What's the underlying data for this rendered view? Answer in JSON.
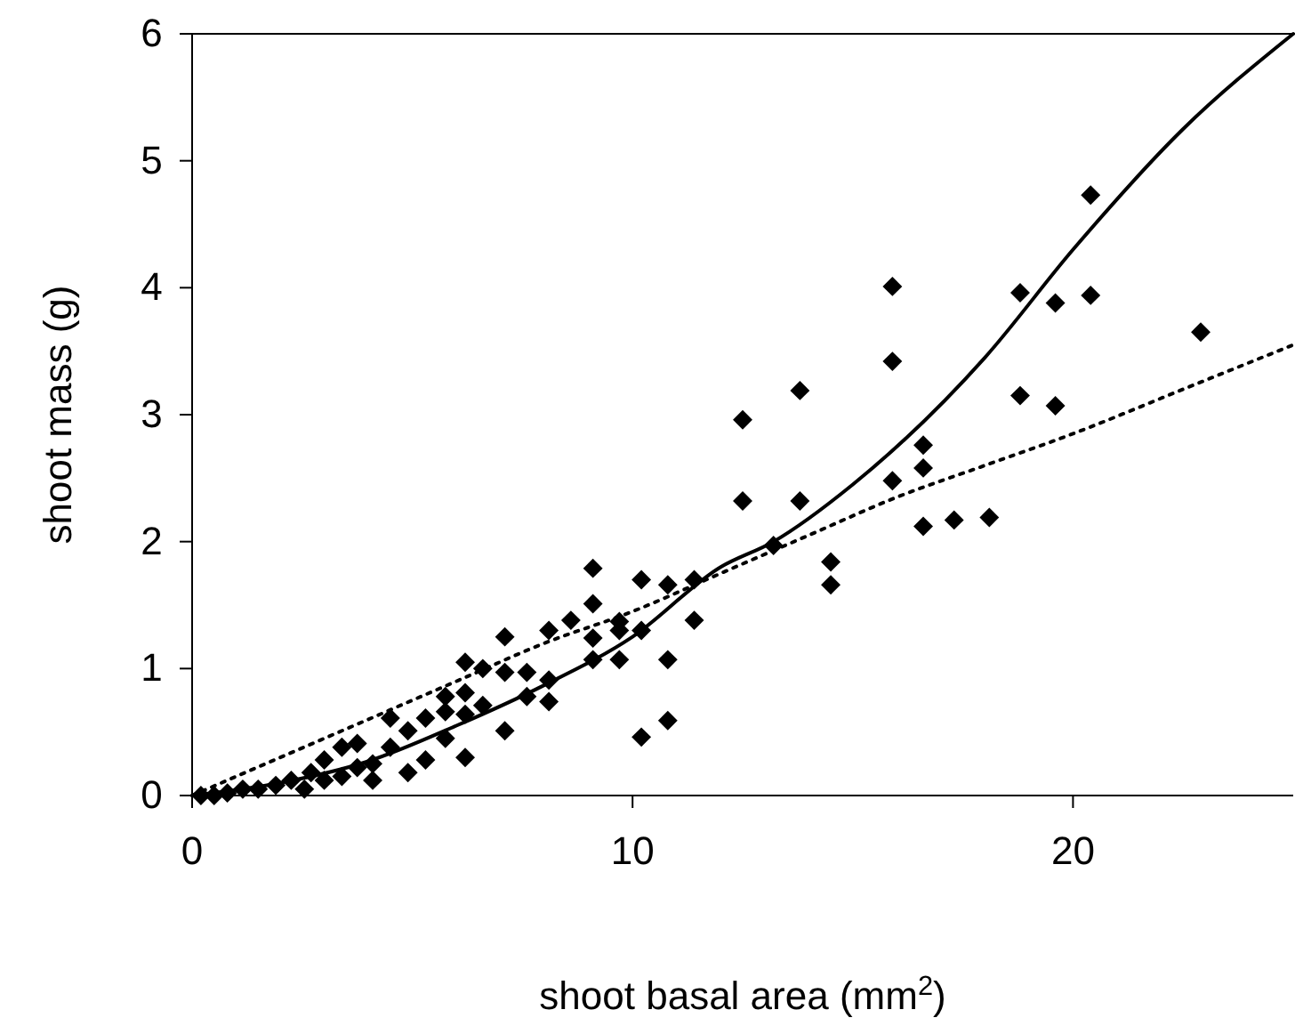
{
  "chart_data": {
    "type": "scatter",
    "xlabel": "shoot basal area (mm$^{2}$)",
    "ylabel": "shoot mass (g)",
    "xlim": [
      0,
      25
    ],
    "ylim": [
      0,
      6
    ],
    "xticks": [
      0,
      10,
      20
    ],
    "yticks": [
      0,
      1,
      2,
      3,
      4,
      5,
      6
    ],
    "grid": false,
    "marker": "diamond",
    "series": [
      {
        "color": "#000000",
        "x": [
          20.4,
          15.9,
          18.8,
          19.6,
          20.4,
          22.9,
          13.8,
          15.9,
          12.5,
          18.8,
          19.6,
          16.6,
          16.6,
          12.5,
          13.8,
          15.9,
          16.6,
          17.3,
          18.1,
          13.2,
          14.5,
          14.5,
          9.1,
          9.1,
          10.2,
          10.8,
          11.4,
          11.4,
          10.2,
          10.8,
          10.2,
          10.8,
          9.7,
          9.7,
          9.7,
          9.1,
          9.1,
          8.6,
          8.1,
          8.1,
          8.1,
          7.6,
          7.6,
          7.1,
          7.1,
          7.1,
          6.6,
          6.6,
          6.2,
          6.2,
          6.2,
          6.2,
          5.75,
          5.75,
          5.75,
          5.3,
          5.3,
          4.9,
          4.9,
          4.5,
          4.5,
          4.1,
          4.1,
          3.75,
          3.75,
          3.4,
          3.4,
          3.0,
          3.0,
          2.7,
          2.55,
          2.25,
          1.9,
          1.5,
          1.15,
          0.8,
          0.5,
          0.2
        ],
        "values": [
          4.73,
          4.01,
          3.96,
          3.88,
          3.94,
          3.65,
          3.19,
          3.42,
          2.96,
          3.15,
          3.07,
          2.76,
          2.58,
          2.32,
          2.32,
          2.48,
          2.12,
          2.17,
          2.19,
          1.97,
          1.84,
          1.66,
          1.79,
          1.51,
          1.7,
          1.66,
          1.7,
          1.38,
          1.3,
          1.07,
          0.46,
          0.59,
          1.37,
          1.3,
          1.07,
          1.24,
          1.07,
          1.38,
          1.3,
          0.91,
          0.74,
          0.97,
          0.78,
          1.25,
          0.97,
          0.51,
          1.0,
          0.71,
          1.05,
          0.81,
          0.64,
          0.3,
          0.78,
          0.66,
          0.45,
          0.61,
          0.28,
          0.51,
          0.18,
          0.61,
          0.38,
          0.25,
          0.12,
          0.41,
          0.22,
          0.38,
          0.15,
          0.28,
          0.12,
          0.18,
          0.05,
          0.12,
          0.08,
          0.05,
          0.05,
          0.02,
          0.0,
          0.0
        ]
      },
      {
        "type": "line",
        "color": "#000000",
        "line_style": "solid",
        "marker": "none",
        "x": [
          0,
          2,
          4,
          6,
          8,
          10,
          12,
          13.2,
          15,
          18,
          20,
          22.5,
          25
        ],
        "values": [
          0,
          0.1,
          0.27,
          0.55,
          0.87,
          1.25,
          1.8,
          2.0,
          2.45,
          3.45,
          4.3,
          5.25,
          6.0
        ]
      },
      {
        "type": "line",
        "color": "#000000",
        "line_style": "dotted",
        "marker": "none",
        "x": [
          0,
          2,
          4,
          6,
          8,
          10,
          12,
          14,
          16,
          18,
          20,
          22.5,
          25
        ],
        "values": [
          0,
          0.3,
          0.6,
          0.9,
          1.2,
          1.45,
          1.75,
          2.05,
          2.35,
          2.6,
          2.85,
          3.2,
          3.55
        ]
      }
    ]
  }
}
